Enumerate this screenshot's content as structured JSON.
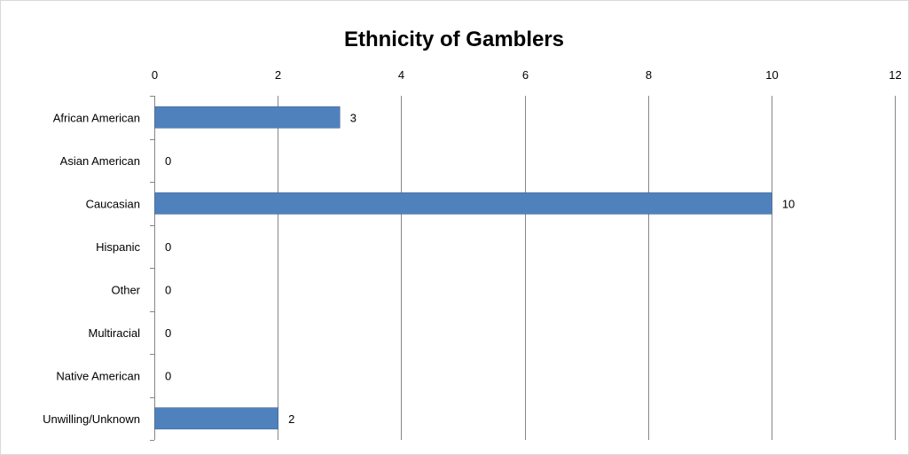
{
  "chart_data": {
    "type": "bar",
    "orientation": "horizontal",
    "title": "Ethnicity of Gamblers",
    "categories": [
      "African American",
      "Asian American",
      "Caucasian",
      "Hispanic",
      "Other",
      "Multiracial",
      "Native American",
      "Unwilling/Unknown"
    ],
    "values": [
      3,
      0,
      10,
      0,
      0,
      0,
      0,
      2
    ],
    "xlim": [
      0,
      12
    ],
    "xticks": [
      "0",
      "2",
      "4",
      "6",
      "8",
      "10",
      "12"
    ],
    "axis_position": "top",
    "grid": true,
    "data_labels": true,
    "bar_color": "#4f81bd"
  }
}
